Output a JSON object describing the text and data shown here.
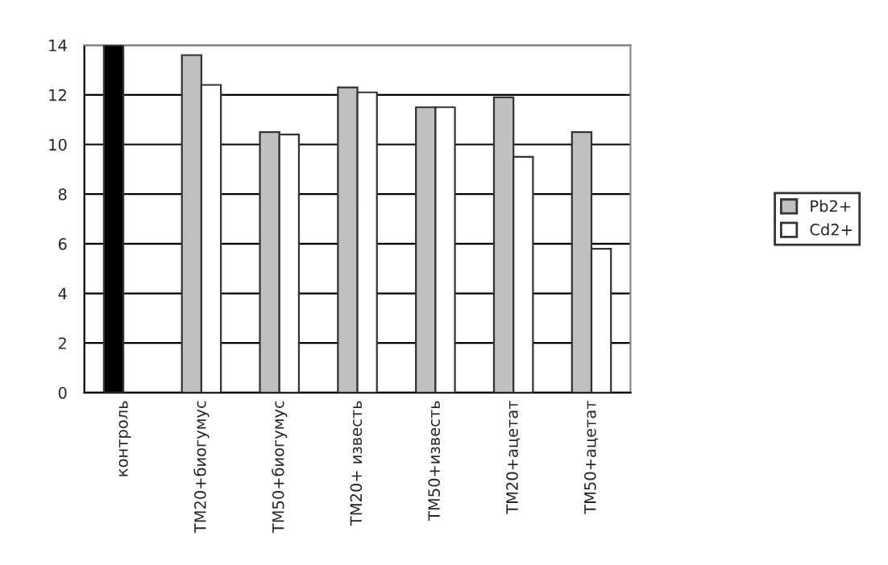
{
  "chart_data": {
    "type": "bar",
    "categories": [
      "контроль",
      "ТМ20+биогумус",
      "ТМ50+биогумус",
      "ТМ20+ известь",
      "ТМ50+известь",
      "ТМ20+ацетат",
      "ТМ50+ацетат"
    ],
    "series": [
      {
        "name": "Pb2+",
        "color": "#c0c0c0",
        "colors": [
          "#000000",
          "#c0c0c0",
          "#c0c0c0",
          "#c0c0c0",
          "#c0c0c0",
          "#c0c0c0",
          "#c0c0c0"
        ],
        "values": [
          14,
          13.6,
          10.5,
          12.3,
          11.5,
          11.9,
          10.5
        ]
      },
      {
        "name": "Cd2+",
        "color": "#ffffff",
        "values": [
          null,
          12.4,
          10.4,
          12.1,
          11.5,
          9.5,
          5.8
        ]
      }
    ],
    "ylim": [
      0,
      14
    ],
    "yticks": [
      0,
      2,
      4,
      6,
      8,
      10,
      12,
      14
    ],
    "grid": "y",
    "legend": "right"
  }
}
